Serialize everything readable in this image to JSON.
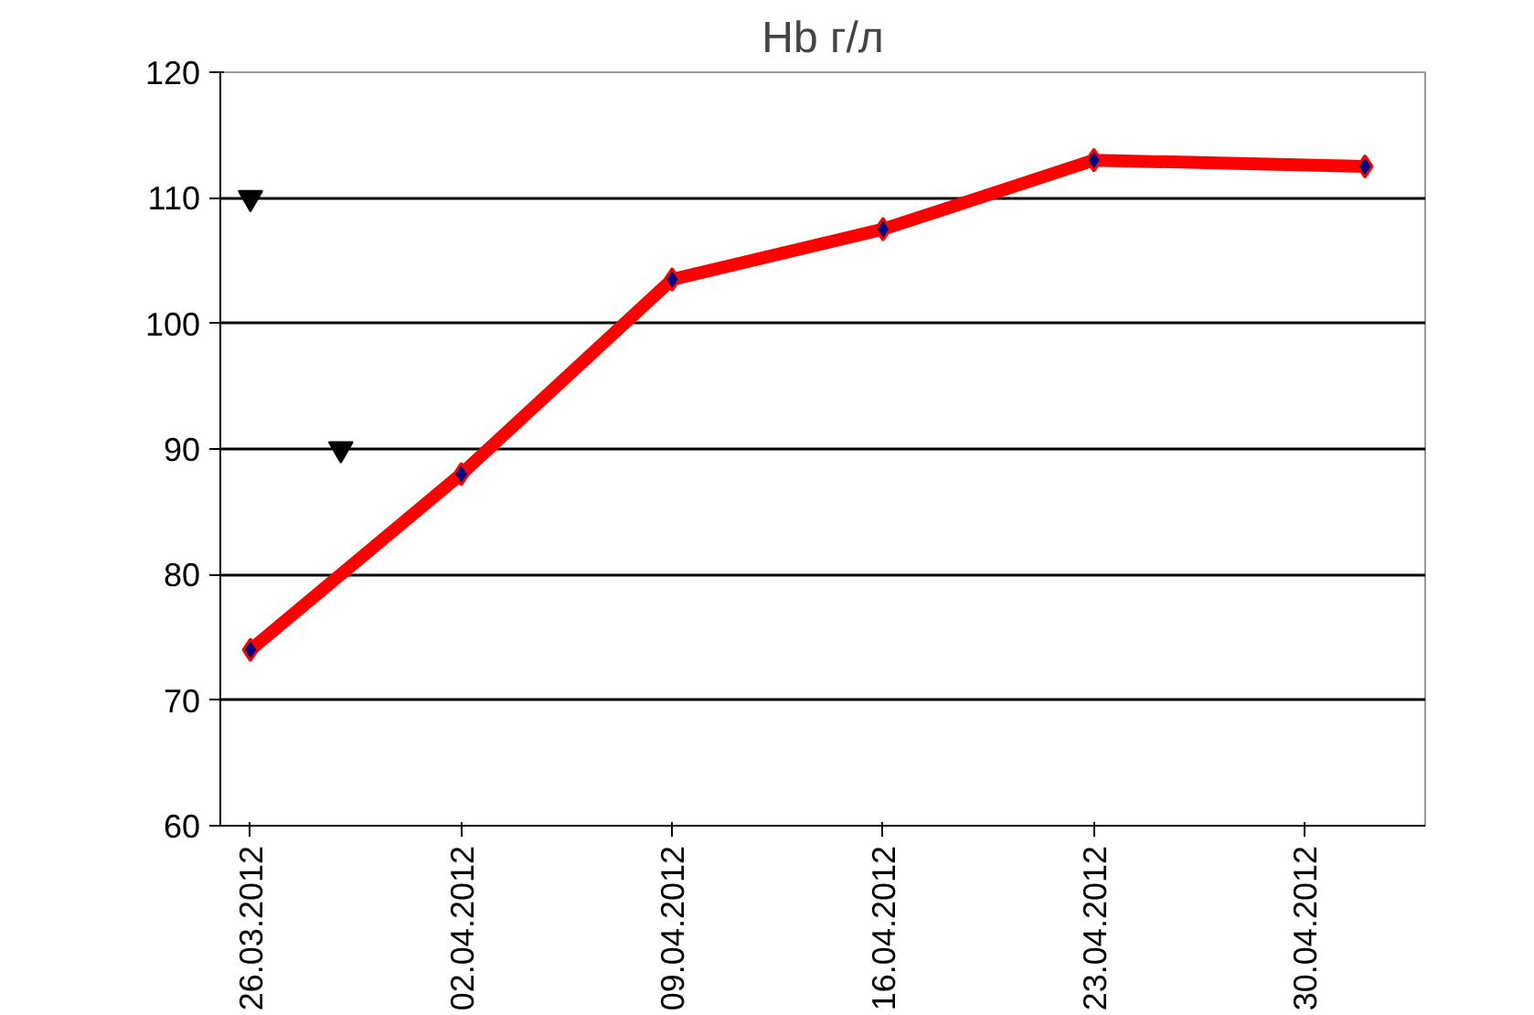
{
  "chart_data": {
    "type": "line",
    "title": "Hb г/л",
    "x": [
      "2012-03-26",
      "2012-04-02",
      "2012-04-09",
      "2012-04-16",
      "2012-04-23",
      "2012-05-02"
    ],
    "series": [
      {
        "color": "#ff0000",
        "marker": "diamond",
        "values": [
          74,
          88,
          103.5,
          107.5,
          113,
          112.5
        ]
      },
      {
        "type": "scatter",
        "color": "#000000",
        "marker": "triangle",
        "x": [
          "2012-03-26",
          "2012-03-29"
        ],
        "values": [
          110,
          90
        ]
      }
    ],
    "xlim": [
      "2012-03-25",
      "2012-05-04"
    ],
    "xticks": [
      {
        "value": "2012-03-26",
        "label": "26.03.2012"
      },
      {
        "value": "2012-04-02",
        "label": "02.04.2012"
      },
      {
        "value": "2012-04-09",
        "label": "09.04.2012"
      },
      {
        "value": "2012-04-16",
        "label": "16.04.2012"
      },
      {
        "value": "2012-04-23",
        "label": "23.04.2012"
      },
      {
        "value": "2012-04-30",
        "label": "30.04.2012"
      }
    ],
    "ylim": [
      60,
      120
    ],
    "yticks": [
      60,
      70,
      80,
      90,
      100,
      110,
      120
    ],
    "grid": "y",
    "line_style": "solid"
  }
}
